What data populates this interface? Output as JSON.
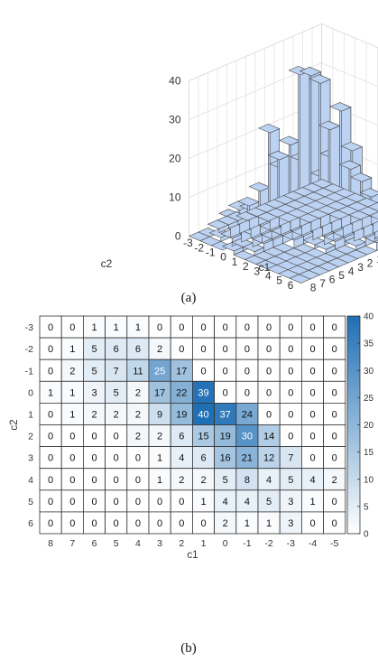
{
  "captions": {
    "a": "(a)",
    "b": "(b)"
  },
  "chart_data": [
    {
      "type": "bar3d",
      "xlabel": "c1",
      "ylabel": "c2",
      "x_ticks": [
        "-5",
        "-4",
        "-3",
        "-2",
        "-1",
        "0",
        "1",
        "2",
        "3",
        "4",
        "5",
        "6",
        "7",
        "8"
      ],
      "y_ticks": [
        "-3",
        "-2",
        "-1",
        "0",
        "1",
        "2",
        "3",
        "4",
        "5",
        "6"
      ],
      "z_ticks": [
        "0",
        "10",
        "20",
        "30",
        "40"
      ],
      "zlim": [
        0,
        40
      ],
      "bar_color": "#bcd2f2",
      "values_ref": "same counts as heatmap (b)"
    },
    {
      "type": "heatmap",
      "xlabel": "c1",
      "ylabel": "c2",
      "x": [
        "8",
        "7",
        "6",
        "5",
        "4",
        "3",
        "2",
        "1",
        "0",
        "-1",
        "-2",
        "-3",
        "-4",
        "-5"
      ],
      "y": [
        "-3",
        "-2",
        "-1",
        "0",
        "1",
        "2",
        "3",
        "4",
        "5",
        "6"
      ],
      "values": [
        [
          0,
          0,
          1,
          1,
          1,
          0,
          0,
          0,
          0,
          0,
          0,
          0,
          0,
          0
        ],
        [
          0,
          1,
          5,
          6,
          6,
          2,
          0,
          0,
          0,
          0,
          0,
          0,
          0,
          0
        ],
        [
          0,
          2,
          5,
          7,
          11,
          25,
          17,
          0,
          0,
          0,
          0,
          0,
          0,
          0
        ],
        [
          1,
          1,
          3,
          5,
          2,
          17,
          22,
          39,
          0,
          0,
          0,
          0,
          0,
          0
        ],
        [
          0,
          1,
          2,
          2,
          2,
          9,
          19,
          40,
          37,
          24,
          0,
          0,
          0,
          0
        ],
        [
          0,
          0,
          0,
          0,
          2,
          2,
          6,
          15,
          19,
          30,
          14,
          0,
          0,
          0
        ],
        [
          0,
          0,
          0,
          0,
          0,
          1,
          4,
          6,
          16,
          21,
          12,
          7,
          0,
          0
        ],
        [
          0,
          0,
          0,
          0,
          0,
          1,
          2,
          2,
          5,
          8,
          4,
          5,
          4,
          2
        ],
        [
          0,
          0,
          0,
          0,
          0,
          0,
          0,
          1,
          4,
          4,
          5,
          3,
          1,
          0
        ],
        [
          0,
          0,
          0,
          0,
          0,
          0,
          0,
          0,
          2,
          1,
          1,
          3,
          0,
          0
        ]
      ],
      "colorbar_ticks": [
        "0",
        "5",
        "10",
        "15",
        "20",
        "25",
        "30",
        "35",
        "40"
      ],
      "range": [
        0,
        40
      ],
      "colormap": [
        "#ffffff",
        "#1f6fb4"
      ]
    }
  ]
}
